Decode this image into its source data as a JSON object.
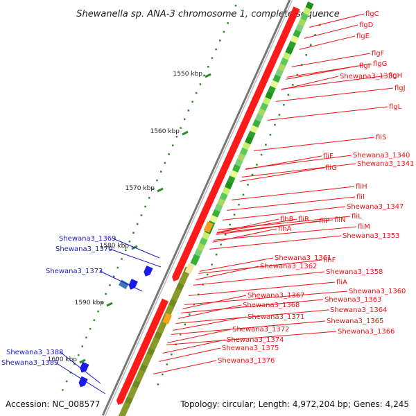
{
  "title": "Shewanella sp. ANA-3 chromosome 1, complete sequence",
  "accession": "Accession: NC_008577",
  "topology": "Topology: circular; Length: 4,972,204 bp; Genes: 4,245",
  "ticks": [
    "1550 kbp",
    "1560 kbp",
    "1570 kbp",
    "1580 kbp",
    "1590 kbp",
    "1600 kbp"
  ],
  "red_labels": [
    "flgC",
    "flgD",
    "flgE",
    "flgF",
    "flgG",
    "flgH",
    "flgI",
    "Shewana3_1330",
    "flgJ",
    "flgL",
    "fliS",
    "Shewana3_1340",
    "fliF",
    "Shewana3_1341",
    "fliG",
    "fliH",
    "fliI",
    "Shewana3_1347",
    "fliL",
    "flhB",
    "fliR",
    "fliP",
    "fliN",
    "fliM",
    "flhA",
    "Shewana3_1353",
    "Shewana3_1361",
    "flhF",
    "Shewana3_1362",
    "Shewana3_1358",
    "fliA",
    "Shewana3_1360",
    "Shewana3_1367",
    "Shewana3_1363",
    "Shewana3_1368",
    "Shewana3_1364",
    "Shewana3_1371",
    "Shewana3_1365",
    "Shewana3_1366",
    "Shewana3_1372",
    "Shewana3_1374",
    "Shewana3_1375",
    "Shewana3_1376"
  ],
  "blue_labels": [
    "Shewana3_1369",
    "Shewana3_1370",
    "Shewana3_1373",
    "Shewana3_1388",
    "Shewana3_1389"
  ],
  "colors": {
    "red_gene": "#ff1a1a",
    "blue_gene": "#1a1aee",
    "backbone": "#888888",
    "track_green": "#2e9e2e",
    "track_olive": "#8a9a2a",
    "dots": "#2a8a2a"
  }
}
